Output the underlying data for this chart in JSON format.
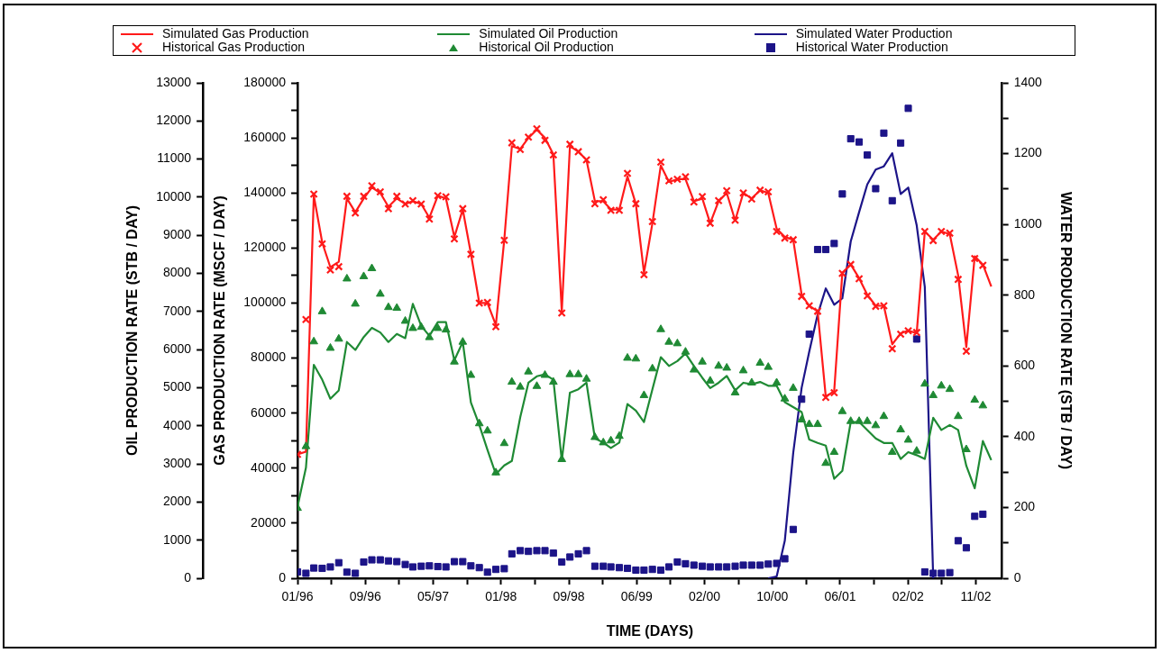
{
  "chart_data": {
    "type": "line",
    "xlabel": "TIME (DAYS)",
    "ylabel": "GAS PRODUCTION RATE (MSCF / DAY)",
    "y2label": "WATER PRODUCTION RATE (STB / DAY)",
    "y3label": "OIL PRODUCTION RATE (STB / DAY)",
    "x": [
      "1996-01",
      "1996-02",
      "1996-03",
      "1996-04",
      "1996-05",
      "1996-06",
      "1996-07",
      "1996-08",
      "1996-09",
      "1996-10",
      "1996-11",
      "1996-12",
      "1997-01",
      "1997-02",
      "1997-03",
      "1997-04",
      "1997-05",
      "1997-06",
      "1997-07",
      "1997-08",
      "1997-09",
      "1997-10",
      "1997-11",
      "1997-12",
      "1998-01",
      "1998-02",
      "1998-03",
      "1998-04",
      "1998-05",
      "1998-06",
      "1998-07",
      "1998-08",
      "1998-09",
      "1998-10",
      "1998-11",
      "1998-12",
      "1999-01",
      "1999-02",
      "1999-03",
      "1999-04",
      "1999-05",
      "1999-06",
      "1999-07",
      "1999-08",
      "1999-09",
      "1999-10",
      "1999-11",
      "1999-12",
      "2000-01",
      "2000-02",
      "2000-03",
      "2000-04",
      "2000-05",
      "2000-06",
      "2000-07",
      "2000-08",
      "2000-09",
      "2000-10",
      "2000-11",
      "2000-12",
      "2001-01",
      "2001-02",
      "2001-03",
      "2001-04",
      "2001-05",
      "2001-06",
      "2001-07",
      "2001-08",
      "2001-09",
      "2001-10",
      "2001-11",
      "2001-12",
      "2002-01",
      "2002-02",
      "2002-03",
      "2002-04",
      "2002-05",
      "2002-06",
      "2002-07",
      "2002-08",
      "2002-09",
      "2002-10",
      "2002-11",
      "2002-12",
      "2003-01"
    ],
    "xlim": [
      "1996-01-01",
      "2003-02-10"
    ],
    "xticks": [
      {
        "value": "1996-01-01",
        "label": "01/96"
      },
      {
        "value": "1996-05-05",
        "label": null
      },
      {
        "value": "1996-09-07",
        "label": "09/96"
      },
      {
        "value": "1997-01-10",
        "label": null
      },
      {
        "value": "1997-05-15",
        "label": "05/97"
      },
      {
        "value": "1997-09-17",
        "label": null
      },
      {
        "value": "1998-01-20",
        "label": "01/98"
      },
      {
        "value": "1998-05-25",
        "label": null
      },
      {
        "value": "1998-09-27",
        "label": "09/98"
      },
      {
        "value": "1999-01-30",
        "label": null
      },
      {
        "value": "1999-06-04",
        "label": "06/99"
      },
      {
        "value": "1999-10-07",
        "label": null
      },
      {
        "value": "2000-02-09",
        "label": "02/00"
      },
      {
        "value": "2000-06-13",
        "label": null
      },
      {
        "value": "2000-10-16",
        "label": "10/00"
      },
      {
        "value": "2001-02-18",
        "label": null
      },
      {
        "value": "2001-06-23",
        "label": "06/01"
      },
      {
        "value": "2001-10-26",
        "label": null
      },
      {
        "value": "2002-02-28",
        "label": "02/02"
      },
      {
        "value": "2002-07-03",
        "label": null
      },
      {
        "value": "2002-11-05",
        "label": "11/02"
      }
    ],
    "ylim": [
      0,
      180000
    ],
    "yticks": [
      0,
      {
        "value": 10000,
        "label": null
      },
      20000,
      {
        "value": 30000,
        "label": null
      },
      40000,
      {
        "value": 50000,
        "label": null
      },
      60000,
      {
        "value": 70000,
        "label": null
      },
      80000,
      {
        "value": 90000,
        "label": null
      },
      100000,
      {
        "value": 110000,
        "label": null
      },
      120000,
      {
        "value": 130000,
        "label": null
      },
      140000,
      {
        "value": 150000,
        "label": null
      },
      160000,
      {
        "value": 170000,
        "label": null
      },
      180000
    ],
    "y2lim": [
      0,
      1400
    ],
    "y2ticks": [
      0,
      {
        "value": 100,
        "label": null
      },
      200,
      {
        "value": 300,
        "label": null
      },
      400,
      {
        "value": 500,
        "label": null
      },
      600,
      {
        "value": 700,
        "label": null
      },
      800,
      {
        "value": 900,
        "label": null
      },
      1000,
      {
        "value": 1100,
        "label": null
      },
      1200,
      {
        "value": 1300,
        "label": null
      },
      1400
    ],
    "y3lim": [
      0,
      13000
    ],
    "y3ticks": [
      0,
      1000,
      2000,
      3000,
      4000,
      5000,
      6000,
      7000,
      8000,
      9000,
      10000,
      11000,
      12000,
      13000
    ],
    "grid": false,
    "legend": "top",
    "series": [
      {
        "name": "Simulated Gas Production",
        "type": "line",
        "marker": "none",
        "color": "#ff1a1a",
        "values": [
          45000,
          46000,
          139000,
          122000,
          113000,
          115000,
          138000,
          133000,
          138000,
          142000,
          140000,
          135000,
          138000,
          136000,
          137000,
          136000,
          131000,
          139000,
          138000,
          124000,
          134000,
          118000,
          100000,
          100000,
          92000,
          123000,
          157000,
          156000,
          160000,
          163000,
          160000,
          154000,
          97000,
          157000,
          155000,
          152000,
          137000,
          137000,
          134000,
          134000,
          146000,
          136000,
          111000,
          129000,
          150000,
          144000,
          145000,
          145000,
          137000,
          138000,
          129000,
          137000,
          140000,
          130000,
          140000,
          138000,
          141000,
          140000,
          127000,
          124000,
          123000,
          103000,
          99000,
          97000,
          66000,
          68000,
          111000,
          114000,
          109000,
          103000,
          99000,
          99000,
          85000,
          89000,
          90000,
          89000,
          126000,
          123000,
          126000,
          125000,
          110000,
          84000,
          117000,
          114000,
          106000
        ]
      },
      {
        "name": "Historical Gas Production",
        "type": "scatter",
        "marker": "cross",
        "color": "#ff1a1a",
        "values": [
          45000,
          94000,
          139600,
          121500,
          112000,
          113200,
          138800,
          132700,
          138800,
          142600,
          140400,
          134300,
          138800,
          136000,
          137200,
          136000,
          130500,
          139000,
          138600,
          123300,
          134300,
          117700,
          100000,
          100200,
          91400,
          122800,
          158200,
          155800,
          160300,
          163300,
          159100,
          153800,
          96400,
          157700,
          155000,
          152000,
          136100,
          137500,
          133700,
          133700,
          147100,
          136100,
          110300,
          129600,
          151200,
          144400,
          145000,
          145900,
          136700,
          138700,
          129000,
          137200,
          140800,
          130100,
          140000,
          137800,
          141000,
          140400,
          126000,
          123600,
          123000,
          102400,
          99000,
          97000,
          65700,
          67400,
          110800,
          114000,
          108800,
          102600,
          98800,
          99000,
          83400,
          88700,
          89900,
          89300,
          126000,
          122700,
          126000,
          125400,
          108600,
          82500,
          116200,
          113700,
          null
        ]
      },
      {
        "name": "Simulated Oil Production",
        "type": "line",
        "marker": "none",
        "axis": "y3",
        "color": "#1f8a34",
        "values": [
          1880,
          2900,
          5600,
          5210,
          4710,
          4930,
          6200,
          5990,
          6330,
          6570,
          6450,
          6200,
          6410,
          6300,
          7200,
          6620,
          6360,
          6720,
          6720,
          5720,
          6200,
          4610,
          4020,
          3370,
          2730,
          2960,
          3080,
          4230,
          5130,
          5300,
          5350,
          5210,
          3090,
          4870,
          4960,
          5130,
          3670,
          3560,
          3420,
          3560,
          4570,
          4400,
          4100,
          4960,
          5800,
          5570,
          5700,
          5900,
          5570,
          5260,
          4990,
          5130,
          5310,
          4930,
          5130,
          5090,
          5150,
          5050,
          5050,
          4620,
          4490,
          4360,
          3640,
          3550,
          3480,
          2610,
          2820,
          4100,
          4100,
          3890,
          3670,
          3550,
          3550,
          3130,
          3310,
          3230,
          3130,
          4210,
          3890,
          4020,
          3890,
          2950,
          2360,
          3600,
          3100
        ]
      },
      {
        "name": "Historical Oil Production",
        "type": "scatter",
        "marker": "triangle",
        "axis": "y3",
        "color": "#1f8a34",
        "values": [
          1840,
          3460,
          6210,
          7000,
          6040,
          6280,
          7860,
          7200,
          7920,
          8130,
          7460,
          7110,
          7090,
          6750,
          6560,
          6590,
          6320,
          6560,
          6520,
          5680,
          6200,
          5330,
          4060,
          3870,
          2770,
          3540,
          5150,
          5020,
          5420,
          5040,
          5330,
          5150,
          3120,
          5350,
          5350,
          5230,
          3700,
          3560,
          3610,
          3730,
          5780,
          5760,
          4800,
          5500,
          6530,
          6200,
          6160,
          5940,
          5470,
          5680,
          5180,
          5570,
          5520,
          4870,
          5450,
          5130,
          5650,
          5540,
          5130,
          4710,
          4990,
          4160,
          4040,
          4040,
          3020,
          3310,
          4380,
          4120,
          4120,
          4120,
          4010,
          4250,
          3310,
          3900,
          3630,
          3340,
          5100,
          4800,
          5050,
          4960,
          4250,
          3380,
          4680,
          4530,
          null
        ]
      },
      {
        "name": "Simulated Water Production",
        "type": "line",
        "marker": "none",
        "axis": "y2",
        "color": "#1c1488",
        "values": [
          null,
          null,
          null,
          null,
          null,
          null,
          null,
          null,
          null,
          null,
          null,
          null,
          null,
          null,
          null,
          null,
          null,
          null,
          null,
          null,
          null,
          null,
          null,
          null,
          null,
          null,
          null,
          null,
          null,
          null,
          null,
          null,
          null,
          null,
          null,
          null,
          null,
          null,
          null,
          null,
          null,
          null,
          null,
          null,
          null,
          null,
          null,
          null,
          null,
          null,
          null,
          null,
          null,
          null,
          null,
          null,
          null,
          0,
          5,
          106,
          354,
          538,
          640,
          745,
          819,
          773,
          791,
          952,
          1035,
          1113,
          1155,
          1164,
          1201,
          1086,
          1104,
          998,
          823,
          0,
          null,
          null,
          null,
          null,
          null,
          null,
          null
        ]
      },
      {
        "name": "Historical Water Production",
        "type": "scatter",
        "marker": "square",
        "axis": "y2",
        "color": "#1c1488",
        "values": [
          18,
          14,
          29,
          28,
          32,
          44,
          17,
          14,
          46,
          52,
          52,
          49,
          47,
          39,
          32,
          34,
          35,
          33,
          32,
          47,
          47,
          35,
          30,
          17,
          25,
          27,
          69,
          78,
          76,
          78,
          78,
          71,
          46,
          60,
          69,
          78,
          34,
          34,
          32,
          30,
          28,
          23,
          23,
          25,
          23,
          32,
          46,
          41,
          37,
          34,
          32,
          32,
          32,
          34,
          37,
          37,
          37,
          40,
          42,
          55,
          138,
          506,
          690,
          929,
          929,
          946,
          1086,
          1242,
          1233,
          1196,
          1101,
          1258,
          1067,
          1230,
          1328,
          676,
          18,
          14,
          14,
          16,
          106,
          86,
          175,
          181,
          null
        ]
      }
    ]
  }
}
